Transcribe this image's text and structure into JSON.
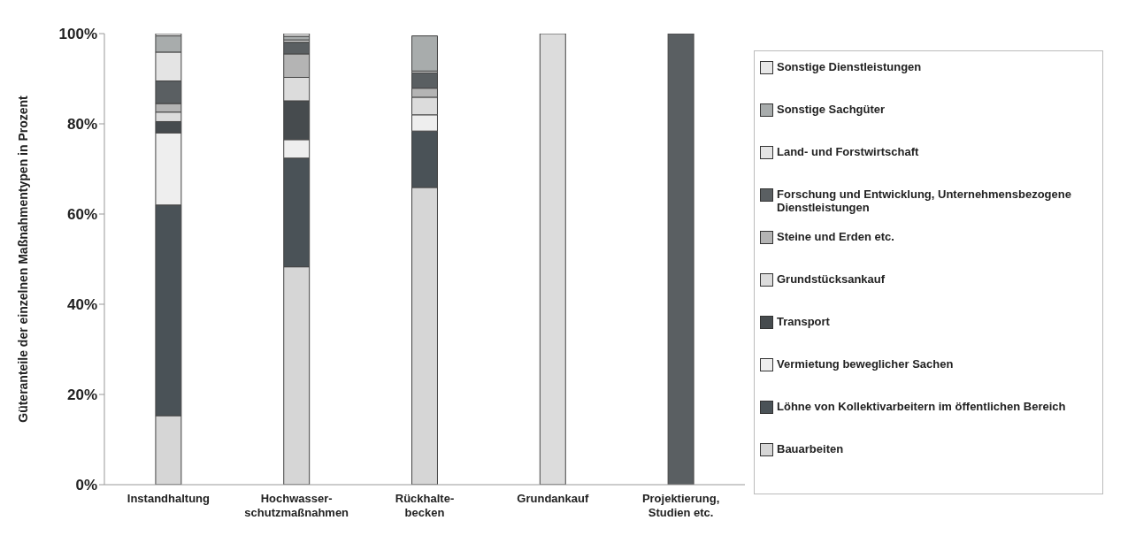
{
  "chart_data": {
    "type": "bar",
    "stacked": true,
    "ylabel": "Güteranteile der einzelnen Maßnahmentypen in Prozent",
    "categories": [
      "Instandhaltung",
      "Hochwasser-schutzmaßnahmen",
      "Rückhalte-becken",
      "Grundankauf",
      "Projektierung, Studien etc."
    ],
    "ylim": [
      0,
      100
    ],
    "yticks": [
      {
        "value": 0,
        "label": "0%"
      },
      {
        "value": 20,
        "label": "20%"
      },
      {
        "value": 40,
        "label": "40%"
      },
      {
        "value": 60,
        "label": "60%"
      },
      {
        "value": 80,
        "label": "80%"
      },
      {
        "value": 100,
        "label": "100%"
      }
    ],
    "legend": "right",
    "series": [
      {
        "name": "Bauarbeiten",
        "color": "#d6d6d6",
        "values": [
          15.3,
          48.3,
          65.9,
          0,
          0
        ]
      },
      {
        "name": "Löhne von Kollektivarbeitern im öffentlichen Bereich",
        "color": "#4a5257",
        "values": [
          46.7,
          24.1,
          12.5,
          0,
          0
        ]
      },
      {
        "name": "Vermietung beweglicher Sachen",
        "color": "#eeeeee",
        "values": [
          16,
          4.1,
          3.6,
          0,
          0
        ]
      },
      {
        "name": "Transport",
        "color": "#464b4e",
        "values": [
          2.5,
          8.6,
          null,
          0,
          0
        ]
      },
      {
        "name": "Grundstücksankauf",
        "color": "#dcdcdc",
        "values": [
          2.1,
          5.2,
          3.9,
          100,
          0
        ]
      },
      {
        "name": "Steine und Erden etc.",
        "color": "#b4b4b4",
        "values": [
          1.9,
          5.2,
          2.0,
          0,
          0
        ]
      },
      {
        "name": "Forschung und Entwicklung, Unternehmensbezogene Dienstleistungen",
        "color": "#5a5f62",
        "values": [
          5,
          2.6,
          3.4,
          0,
          100
        ]
      },
      {
        "name": "Land- und Forstwirtschaft",
        "color": "#e4e4e4",
        "values": [
          6.4,
          0.5,
          0.4,
          0,
          0
        ]
      },
      {
        "name": "Sonstige Sachgüter",
        "color": "#a8acac",
        "values": [
          3.6,
          0.8,
          7.8,
          0,
          0
        ]
      },
      {
        "name": "Sonstige Dienstleistungen",
        "color": "#e8e8e8",
        "values": [
          0.5,
          0.6,
          null,
          0,
          0
        ]
      }
    ]
  }
}
